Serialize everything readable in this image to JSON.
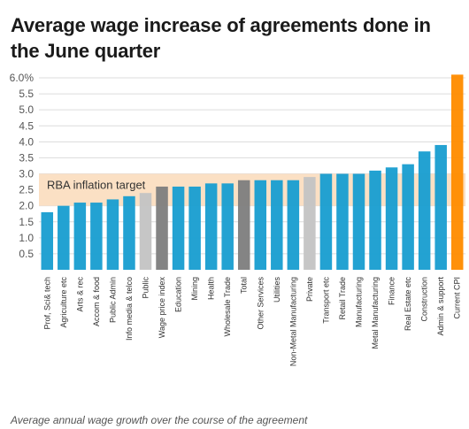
{
  "chart_data": {
    "type": "bar",
    "title": "Average wage increase of agreements done in the June quarter",
    "footnote": "Average annual wage growth over the course of the agreement",
    "ylim": [
      0,
      6.0
    ],
    "yticks": [
      "0.5",
      "1.0",
      "1.5",
      "2.0",
      "2.5",
      "3.0",
      "3.5",
      "4.0",
      "4.5",
      "5.0",
      "5.5",
      "6.0%"
    ],
    "ytick_values": [
      0.5,
      1.0,
      1.5,
      2.0,
      2.5,
      3.0,
      3.5,
      4.0,
      4.5,
      5.0,
      5.5,
      6.0
    ],
    "grid": true,
    "band": {
      "label": "RBA inflation target",
      "from": 2.0,
      "to": 3.0,
      "color": "#fbe0c4"
    },
    "categories": [
      "Prof, Sci& tech",
      "Agriculture etc",
      "Arts & rec",
      "Accom & food",
      "Public Admin",
      "Info media & telco",
      "Public",
      "Wage price index",
      "Education",
      "Mining",
      "Health",
      "Wholesale Trade",
      "Total",
      "Other Services",
      "Utilities",
      "Non-Metal Manufacturing",
      "Private",
      "Transport etc",
      "Retail Trade",
      "Manufacturing",
      "Metal Manufacturing",
      "Finance",
      "Real Estate etc",
      "Construction",
      "Admin & support",
      "Current CPI"
    ],
    "values": [
      1.8,
      2.0,
      2.1,
      2.1,
      2.2,
      2.3,
      2.4,
      2.6,
      2.6,
      2.6,
      2.7,
      2.7,
      2.8,
      2.8,
      2.8,
      2.8,
      2.9,
      3.0,
      3.0,
      3.0,
      3.1,
      3.2,
      3.3,
      3.7,
      3.9,
      6.1
    ],
    "colors": [
      "#1a9ed0",
      "#1a9ed0",
      "#1a9ed0",
      "#1a9ed0",
      "#1a9ed0",
      "#1a9ed0",
      "#c4c4c4",
      "#7f7f7f",
      "#1a9ed0",
      "#1a9ed0",
      "#1a9ed0",
      "#1a9ed0",
      "#7f7f7f",
      "#1a9ed0",
      "#1a9ed0",
      "#1a9ed0",
      "#c4c4c4",
      "#1a9ed0",
      "#1a9ed0",
      "#1a9ed0",
      "#1a9ed0",
      "#1a9ed0",
      "#1a9ed0",
      "#1a9ed0",
      "#1a9ed0",
      "#ff8c00"
    ]
  }
}
